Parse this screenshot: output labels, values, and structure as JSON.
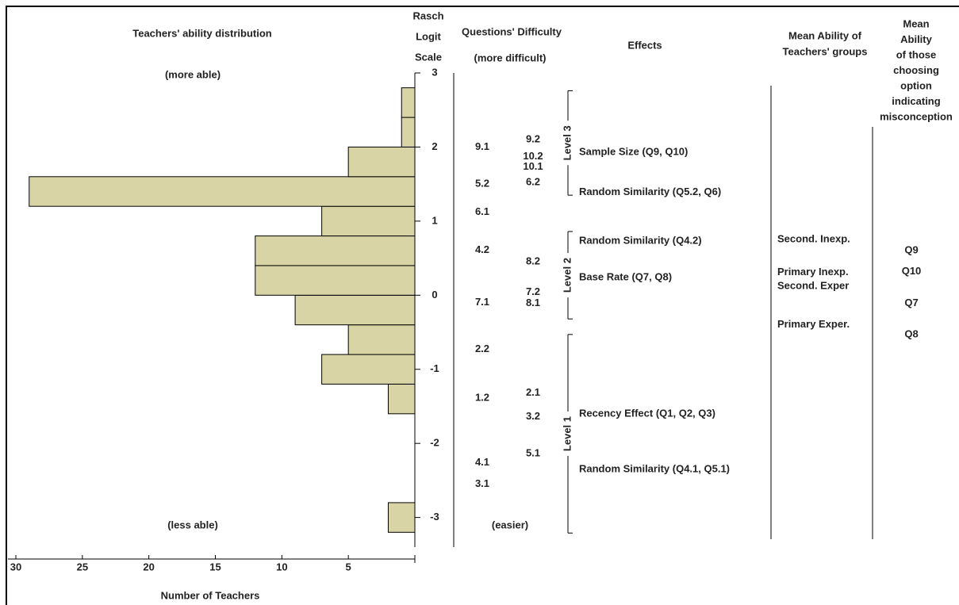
{
  "chart_data": {
    "type": "wright-map",
    "headers": {
      "distribution": "Teachers' ability distribution",
      "more_able": "(more able)",
      "less_able": "(less able)",
      "scale": [
        "Rasch",
        "Logit",
        "Scale"
      ],
      "difficulty": "Questions' Difficulty",
      "more_difficult": "(more difficult)",
      "easier": "(easier)",
      "effects": "Effects",
      "groups": [
        "Mean Ability of",
        "Teachers' groups"
      ],
      "options": [
        "Mean",
        "Ability",
        "of those",
        "choosing",
        "option",
        "indicating",
        "misconception"
      ]
    },
    "xlabel": "Number of Teachers",
    "xlim": [
      0,
      30
    ],
    "xticks": [
      30,
      25,
      20,
      15,
      10,
      5
    ],
    "ylim": [
      -3.4,
      3.0
    ],
    "yticks": [
      3,
      2,
      1,
      0,
      -1,
      -2,
      -3
    ],
    "bins": [
      -3.2,
      -2.8,
      -2.4,
      -2.0,
      -1.6,
      -1.2,
      -0.8,
      -0.4,
      0.0,
      0.4,
      0.8,
      1.2,
      1.6,
      2.0,
      2.4,
      2.8
    ],
    "counts": [
      2,
      0,
      0,
      0,
      2,
      7,
      5,
      9,
      12,
      12,
      7,
      29,
      5,
      1,
      1
    ],
    "color": "#d9d4a6",
    "item_columns": [
      [
        {
          "label": "9.1",
          "logit": 2.0
        },
        {
          "label": "5.2",
          "logit": 1.5
        },
        {
          "label": "6.1",
          "logit": 1.12
        },
        {
          "label": "4.2",
          "logit": 0.61
        },
        {
          "label": "7.1",
          "logit": -0.1
        },
        {
          "label": "2.2",
          "logit": -0.73
        },
        {
          "label": "1.2",
          "logit": -1.39
        },
        {
          "label": "4.1",
          "logit": -2.26
        },
        {
          "label": "3.1",
          "logit": -2.55
        }
      ],
      [
        {
          "label": "9.2",
          "logit": 2.1
        },
        {
          "label": "10.2",
          "logit": 1.87
        },
        {
          "label": "10.1",
          "logit": 1.73
        },
        {
          "label": "6.2",
          "logit": 1.52
        },
        {
          "label": "8.2",
          "logit": 0.45
        },
        {
          "label": "7.2",
          "logit": 0.04
        },
        {
          "label": "8.1",
          "logit": -0.11
        },
        {
          "label": "2.1",
          "logit": -1.32
        },
        {
          "label": "3.2",
          "logit": -1.64
        },
        {
          "label": "5.1",
          "logit": -2.14
        }
      ]
    ],
    "levels": [
      {
        "label": "Level 3",
        "from": 1.35,
        "to": 2.76
      },
      {
        "label": "Level 2",
        "from": -0.32,
        "to": 0.86
      },
      {
        "label": "Level 1",
        "from": -3.21,
        "to": -0.53
      }
    ],
    "effects": [
      {
        "label": "Sample Size (Q9, Q10)",
        "logit": 1.93
      },
      {
        "label": "Random Similarity (Q5.2, Q6)",
        "logit": 1.39
      },
      {
        "label": "Random Similarity (Q4.2)",
        "logit": 0.73
      },
      {
        "label": "Base Rate (Q7, Q8)",
        "logit": 0.24
      },
      {
        "label": "Recency Effect (Q1, Q2, Q3)",
        "logit": -1.6
      },
      {
        "label": "Random Similarity (Q4.1, Q5.1)",
        "logit": -2.35
      }
    ],
    "groups": [
      {
        "label": "Second. Inexp.",
        "logit": 0.75
      },
      {
        "label": "Primary Inexp.",
        "logit": 0.31
      },
      {
        "label": "Second. Exper",
        "logit": 0.12
      },
      {
        "label": "Primary Exper.",
        "logit": -0.4
      }
    ],
    "options": [
      {
        "label": "Q9",
        "logit": 0.6
      },
      {
        "label": "Q10",
        "logit": 0.32
      },
      {
        "label": "Q7",
        "logit": -0.11
      },
      {
        "label": "Q8",
        "logit": -0.53
      }
    ]
  }
}
